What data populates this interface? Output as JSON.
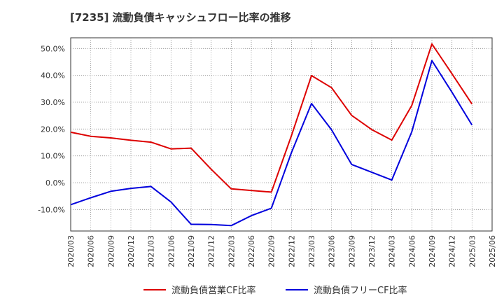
{
  "chart_data": {
    "type": "line",
    "title": "[7235]  流動負債キャッシュフロー比率の推移",
    "x": [
      "2020/03",
      "2020/06",
      "2020/09",
      "2020/12",
      "2021/03",
      "2021/06",
      "2021/09",
      "2021/12",
      "2022/03",
      "2022/06",
      "2022/09",
      "2022/12",
      "2023/03",
      "2023/06",
      "2023/09",
      "2023/12",
      "2024/03",
      "2024/06",
      "2024/09",
      "2024/12",
      "2025/03",
      "2025/06"
    ],
    "y_ticks": [
      "50.0%",
      "40.0%",
      "30.0%",
      "20.0%",
      "10.0%",
      "0.0%",
      "-10.0%"
    ],
    "y_tick_values": [
      50,
      40,
      30,
      20,
      10,
      0,
      -10
    ],
    "ylim": [
      -18,
      54
    ],
    "grid": true,
    "legend_position": "bottom",
    "series": [
      {
        "name": "流動負債営業CF比率",
        "color": "#dd0000",
        "values": [
          18.8,
          17.3,
          16.7,
          15.8,
          15.1,
          12.6,
          12.9,
          5.0,
          -2.3,
          -2.9,
          -3.5,
          17.5,
          39.9,
          35.4,
          25.1,
          19.8,
          15.9,
          28.8,
          51.7,
          40.6,
          29.3,
          null
        ]
      },
      {
        "name": "流動負債フリーCF比率",
        "color": "#0000dd",
        "values": [
          -8.2,
          -5.6,
          -3.2,
          -2.1,
          -1.4,
          -7.2,
          -15.5,
          -15.6,
          -16.0,
          -12.3,
          -9.5,
          11.2,
          29.5,
          19.7,
          6.8,
          3.9,
          1.0,
          19.0,
          45.5,
          33.7,
          21.5,
          null
        ]
      }
    ]
  }
}
